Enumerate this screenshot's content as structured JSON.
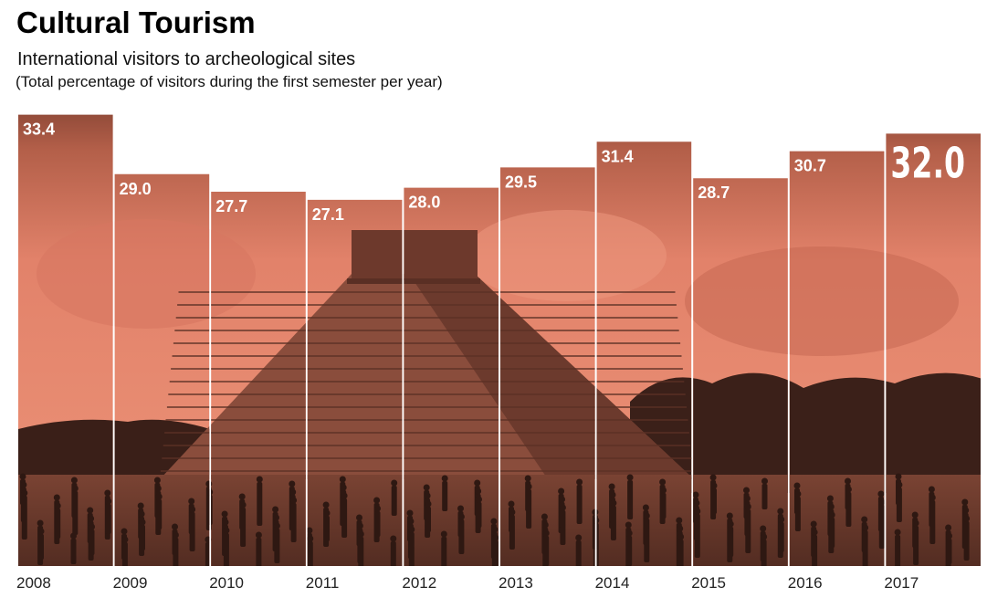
{
  "chart_data": {
    "type": "bar",
    "title": "Cultural Tourism",
    "subtitle": "International visitors to archeological sites",
    "note": "(Total percentage of visitors during the first semester per year)",
    "categories": [
      "2008",
      "2009",
      "2010",
      "2011",
      "2012",
      "2013",
      "2014",
      "2015",
      "2016",
      "2017"
    ],
    "values": [
      33.4,
      29.0,
      27.7,
      27.1,
      28.0,
      29.5,
      31.4,
      28.7,
      30.7,
      32.0
    ],
    "value_labels": [
      "33.4",
      "29.0",
      "27.7",
      "27.1",
      "28.0",
      "29.5",
      "31.4",
      "28.7",
      "30.7",
      "32.0"
    ],
    "highlight_category": "2017",
    "ylim": [
      0,
      34
    ],
    "grid": false,
    "xlabel": "",
    "ylabel": "",
    "bar_fill": "photo of pyramid with salmon tint",
    "colors": {
      "sky": "#e2826a",
      "sky_dark": "#8c4636",
      "ground": "#5e3327",
      "label": "#ffffff",
      "year_label": "#222222"
    }
  }
}
